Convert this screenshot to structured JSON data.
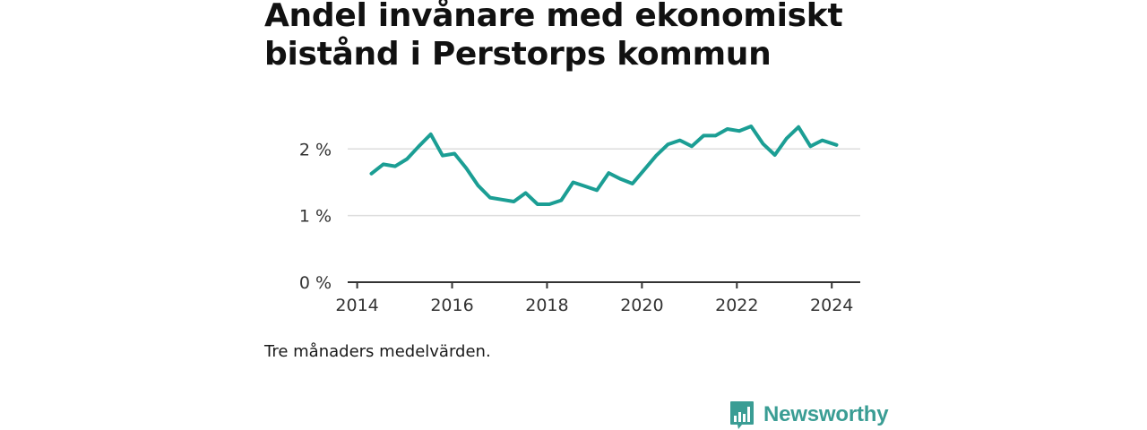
{
  "title": "Andel invånare med ekonomiskt bistånd i Perstorps kommun",
  "note": "Tre månaders medelvärden.",
  "brand": {
    "name": "Newsworthy",
    "logo_icon": "bar-chart-speech-bubble-icon"
  },
  "colors": {
    "line": "#1b9e94",
    "grid": "#dddddd",
    "axis": "#333333",
    "brand": "#3a9d94"
  },
  "chart_data": {
    "type": "line",
    "title": "",
    "xlabel": "",
    "ylabel": "",
    "xlim": [
      2013.8,
      2024.6
    ],
    "ylim": [
      0,
      2.3
    ],
    "x_ticks": [
      2014,
      2016,
      2018,
      2020,
      2022,
      2024
    ],
    "x_tick_labels": [
      "2014",
      "2016",
      "2018",
      "2020",
      "2022",
      "2024"
    ],
    "y_ticks": [
      0,
      1,
      2
    ],
    "y_tick_labels": [
      "0 %",
      "1 %",
      "2 %"
    ],
    "grid": "horizontal",
    "series": [
      {
        "name": "",
        "x": [
          2014.3,
          2014.55,
          2014.8,
          2015.05,
          2015.3,
          2015.55,
          2015.8,
          2016.05,
          2016.3,
          2016.55,
          2016.8,
          2017.05,
          2017.3,
          2017.55,
          2017.8,
          2018.05,
          2018.3,
          2018.55,
          2018.8,
          2019.05,
          2019.3,
          2019.55,
          2019.8,
          2020.05,
          2020.3,
          2020.55,
          2020.8,
          2021.05,
          2021.3,
          2021.55,
          2021.8,
          2022.05,
          2022.3,
          2022.55,
          2022.8,
          2023.05,
          2023.3,
          2023.55,
          2023.8,
          2024.1
        ],
        "values": [
          1.63,
          1.77,
          1.74,
          1.85,
          2.04,
          2.22,
          1.9,
          1.93,
          1.71,
          1.45,
          1.27,
          1.24,
          1.21,
          1.34,
          1.17,
          1.17,
          1.23,
          1.5,
          1.44,
          1.38,
          1.64,
          1.55,
          1.48,
          1.69,
          1.9,
          2.07,
          2.13,
          2.04,
          2.2,
          2.2,
          2.3,
          2.27,
          2.34,
          2.08,
          1.91,
          2.16,
          2.33,
          2.04,
          2.13,
          2.06
        ]
      }
    ]
  }
}
